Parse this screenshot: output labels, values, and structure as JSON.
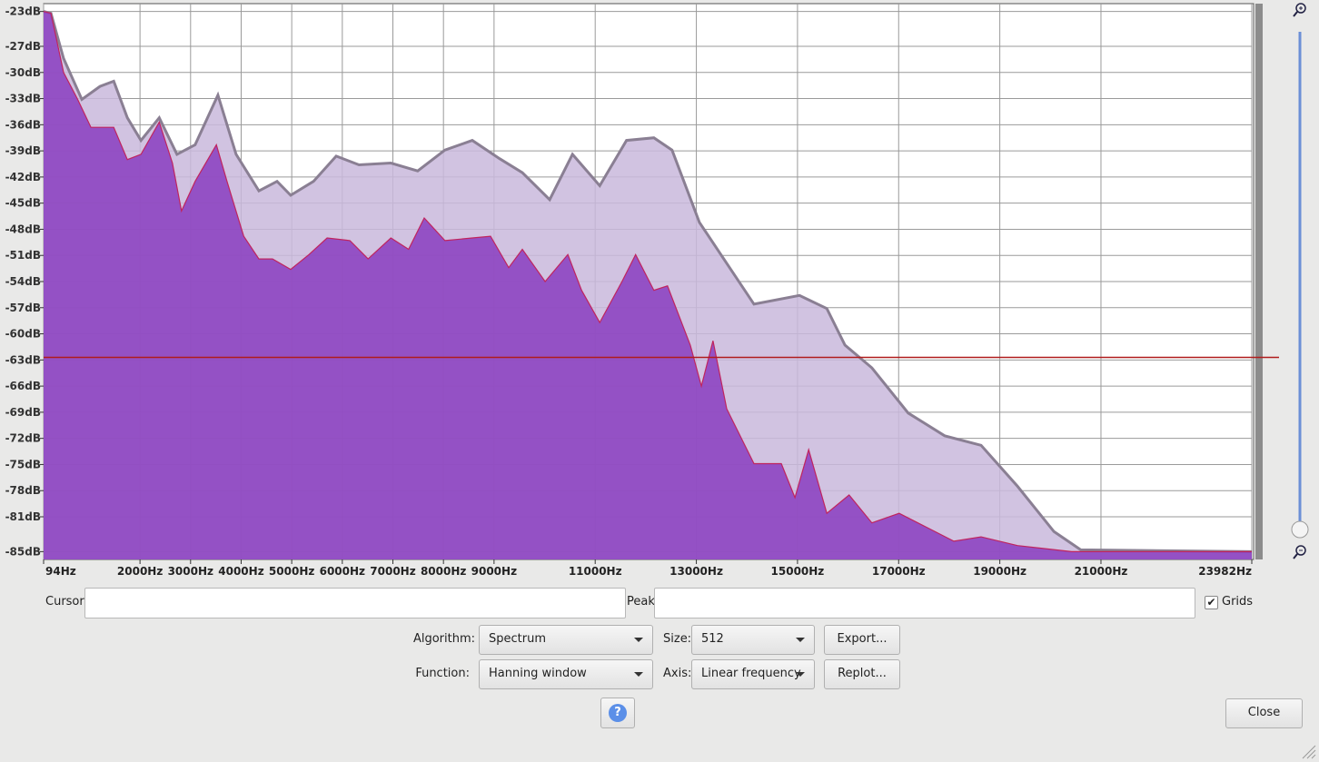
{
  "chart_data": {
    "type": "area",
    "series": [
      {
        "color": "#c9b8dc",
        "x": [
          94,
          240,
          490,
          850,
          1210,
          1480,
          1750,
          2020,
          2380,
          2730,
          3090,
          3540,
          3900,
          4350,
          4710,
          4980,
          5430,
          5880,
          6330,
          6960,
          7490,
          8030,
          8570,
          9110,
          9560,
          10100,
          10550,
          11090,
          11620,
          12160,
          12520,
          13060,
          13600,
          14140,
          15040,
          15580,
          15940,
          16470,
          17190,
          17910,
          18630,
          19350,
          20070,
          20600,
          23982
        ],
        "values": [
          -23,
          -23.2,
          -28.4,
          -33.1,
          -31.6,
          -31,
          -35.2,
          -37.8,
          -35.2,
          -39.4,
          -38.3,
          -32.6,
          -39.4,
          -43.6,
          -42.5,
          -44.1,
          -42.5,
          -39.6,
          -40.6,
          -40.4,
          -41.3,
          -38.9,
          -37.8,
          -39.9,
          -41.5,
          -44.6,
          -39.4,
          -43,
          -37.8,
          -37.5,
          -38.9,
          -47.2,
          -51.9,
          -56.6,
          -55.6,
          -57.1,
          -61.3,
          -63.9,
          -69.1,
          -71.7,
          -72.8,
          -77.5,
          -82.7,
          -84.8,
          -85
        ]
      },
      {
        "color": "#8a3dbf",
        "x": [
          94,
          240,
          490,
          760,
          1030,
          1480,
          1750,
          2020,
          2380,
          2640,
          2820,
          3090,
          3510,
          3720,
          4050,
          4350,
          4620,
          4980,
          5340,
          5700,
          6150,
          6510,
          6960,
          7310,
          7620,
          8030,
          8570,
          8930,
          9290,
          9560,
          10010,
          10460,
          10730,
          11090,
          11530,
          11800,
          12160,
          12430,
          12880,
          13100,
          13330,
          13600,
          14140,
          14680,
          14950,
          15220,
          15580,
          16020,
          16470,
          17010,
          17550,
          18090,
          18630,
          19350,
          20420,
          23982
        ],
        "values": [
          -23,
          -23.2,
          -30,
          -33,
          -36.3,
          -36.3,
          -40,
          -39.4,
          -35.7,
          -40.4,
          -45.9,
          -42.5,
          -38.3,
          -42.5,
          -48.8,
          -51.4,
          -51.4,
          -52.6,
          -50.9,
          -49,
          -49.3,
          -51.4,
          -49,
          -50.3,
          -46.7,
          -49.3,
          -49,
          -48.8,
          -52.4,
          -50.3,
          -54,
          -50.9,
          -55,
          -58.7,
          -54,
          -50.9,
          -55,
          -54.5,
          -61.3,
          -66,
          -60.8,
          -68.6,
          -74.9,
          -74.9,
          -78.8,
          -73.3,
          -80.6,
          -78.5,
          -81.7,
          -80.6,
          -82.2,
          -83.8,
          -83.3,
          -84.3,
          -85,
          -85
        ]
      }
    ],
    "xlim": [
      94,
      23982
    ],
    "xticks": [
      {
        "value": 94,
        "label": "94Hz"
      },
      {
        "value": 2000,
        "label": "2000Hz"
      },
      {
        "value": 3000,
        "label": "3000Hz"
      },
      {
        "value": 4000,
        "label": "4000Hz"
      },
      {
        "value": 5000,
        "label": "5000Hz"
      },
      {
        "value": 6000,
        "label": "6000Hz"
      },
      {
        "value": 7000,
        "label": "7000Hz"
      },
      {
        "value": 8000,
        "label": "8000Hz"
      },
      {
        "value": 9000,
        "label": "9000Hz"
      },
      {
        "value": 11000,
        "label": "11000Hz"
      },
      {
        "value": 13000,
        "label": "13000Hz"
      },
      {
        "value": 15000,
        "label": "15000Hz"
      },
      {
        "value": 17000,
        "label": "17000Hz"
      },
      {
        "value": 19000,
        "label": "19000Hz"
      },
      {
        "value": 21000,
        "label": "21000Hz"
      },
      {
        "value": 23982,
        "label": "23982Hz"
      }
    ],
    "ylim": [
      -85.9,
      -22.1
    ],
    "yticks": [
      {
        "value": -23,
        "label": "-23dB"
      },
      {
        "value": -27,
        "label": "-27dB"
      },
      {
        "value": -30,
        "label": "-30dB"
      },
      {
        "value": -33,
        "label": "-33dB"
      },
      {
        "value": -36,
        "label": "-36dB"
      },
      {
        "value": -39,
        "label": "-39dB"
      },
      {
        "value": -42,
        "label": "-42dB"
      },
      {
        "value": -45,
        "label": "-45dB"
      },
      {
        "value": -48,
        "label": "-48dB"
      },
      {
        "value": -51,
        "label": "-51dB"
      },
      {
        "value": -54,
        "label": "-54dB"
      },
      {
        "value": -57,
        "label": "-57dB"
      },
      {
        "value": -60,
        "label": "-60dB"
      },
      {
        "value": -63,
        "label": "-63dB"
      },
      {
        "value": -66,
        "label": "-66dB"
      },
      {
        "value": -69,
        "label": "-69dB"
      },
      {
        "value": -72,
        "label": "-72dB"
      },
      {
        "value": -75,
        "label": "-75dB"
      },
      {
        "value": -78,
        "label": "-78dB"
      },
      {
        "value": -81,
        "label": "-81dB"
      },
      {
        "value": -85,
        "label": "-85dB"
      }
    ],
    "reference_line": {
      "value": -62.7,
      "color": "#b01c1c"
    }
  },
  "controls": {
    "cursor_label": "Cursor:",
    "peak_label": "Peak:",
    "grids_label": "Grids",
    "grids": true,
    "algorithm_label": "Algorithm:",
    "algorithm": "Spectrum",
    "size_label": "Size:",
    "size": "512",
    "export_button": "Export...",
    "function_label": "Function:",
    "function": "Hanning window",
    "axis_label": "Axis:",
    "axis": "Linear frequency",
    "replot_button": "Replot...",
    "help_button": "?",
    "close_button": "Close"
  }
}
